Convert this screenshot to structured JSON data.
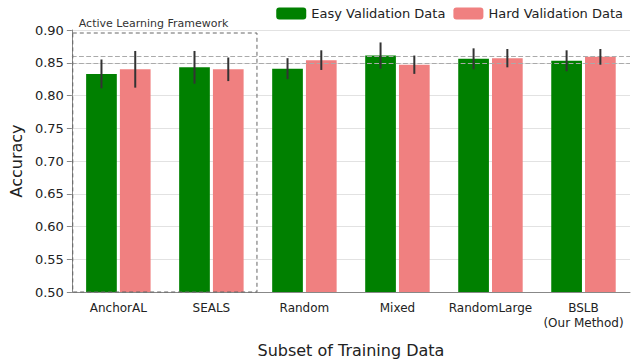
{
  "chart_data": {
    "type": "bar",
    "x_label": "Subset of Training Data",
    "y_label": "Accuracy",
    "categories": [
      "AnchorAL",
      "SEALS",
      "Random",
      "Mixed",
      "RandomLarge",
      "BSLB\n(Our Method)"
    ],
    "series": [
      {
        "name": "Easy Validation Data",
        "color": "#008000",
        "values": [
          0.833,
          0.843,
          0.841,
          0.861,
          0.856,
          0.853
        ],
        "errors": [
          0.022,
          0.025,
          0.016,
          0.02,
          0.016,
          0.016
        ]
      },
      {
        "name": "Hard Validation Data",
        "color": "#f08080",
        "values": [
          0.84,
          0.84,
          0.854,
          0.847,
          0.857,
          0.859
        ],
        "errors": [
          0.028,
          0.018,
          0.015,
          0.014,
          0.014,
          0.012
        ]
      }
    ],
    "reference_lines": [
      0.853,
      0.859
    ],
    "annotations": [
      {
        "text": "Active Learning Framework",
        "categories": [
          "AnchorAL",
          "SEALS"
        ]
      }
    ],
    "ylim": [
      0.5,
      0.9
    ],
    "yticks": [
      {
        "value": 0.5,
        "label": "0.50"
      },
      {
        "value": 0.55,
        "label": "0.55"
      },
      {
        "value": 0.6,
        "label": "0.60"
      },
      {
        "value": 0.65,
        "label": "0.65"
      },
      {
        "value": 0.7,
        "label": "0.70"
      },
      {
        "value": 0.75,
        "label": "0.75"
      },
      {
        "value": 0.8,
        "label": "0.80"
      },
      {
        "value": 0.85,
        "label": "0.85"
      },
      {
        "value": 0.9,
        "label": "0.90"
      }
    ],
    "grid": true,
    "legend": "upper right"
  }
}
